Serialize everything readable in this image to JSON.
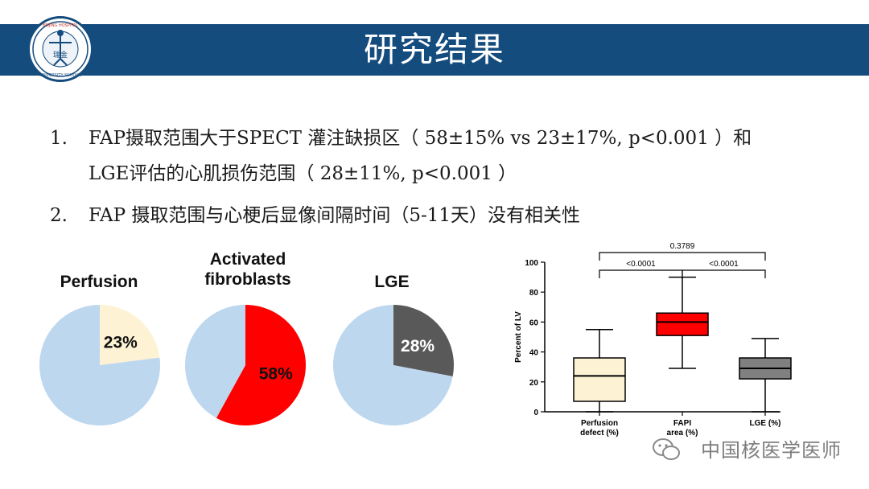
{
  "header": {
    "title": "研究结果",
    "bar_color": "#154c7e",
    "logo_text_top": "BEIJING HOSPITAL",
    "logo_text_bottom": "UNIVERSITY SCHOOL",
    "logo_center": "瑞金"
  },
  "findings": [
    {
      "number": "1.",
      "line1": "FAP摄取范围大于SPECT 灌注缺损区（ 58±15% vs 23±17%, p<0.001 ）和",
      "line2": "LGE评估的心肌损伤范围（ 28±11%, p<0.001 ）"
    },
    {
      "number": "2.",
      "line1": "FAP 摄取范围与心梗后显像间隔时间（5-11天）没有相关性"
    }
  ],
  "watermark": "中国核医学医师",
  "chart_data": [
    {
      "type": "pie",
      "title": "Perfusion",
      "slices": [
        {
          "label": "23%",
          "value": 23,
          "color": "#fdf3d4"
        },
        {
          "label": "",
          "value": 77,
          "color": "#bdd7ee"
        }
      ]
    },
    {
      "type": "pie",
      "title": "Activated fibroblasts",
      "title_lines": [
        "Activated",
        "fibroblasts"
      ],
      "slices": [
        {
          "label": "58%",
          "value": 58,
          "color": "#ff0000"
        },
        {
          "label": "",
          "value": 42,
          "color": "#bdd7ee"
        }
      ]
    },
    {
      "type": "pie",
      "title": "LGE",
      "slices": [
        {
          "label": "28%",
          "value": 28,
          "color": "#595959"
        },
        {
          "label": "",
          "value": 72,
          "color": "#bdd7ee"
        }
      ]
    },
    {
      "type": "box",
      "ylabel": "Percent of LV",
      "ylim": [
        0,
        100
      ],
      "yticks": [
        0,
        20,
        40,
        60,
        80,
        100
      ],
      "categories": [
        "Perfusion defect (%)",
        "FAPI area (%)",
        "LGE (%)"
      ],
      "category_lines": [
        [
          "Perfusion",
          "defect (%)"
        ],
        [
          "FAPI",
          "area (%)"
        ],
        [
          "LGE (%)"
        ]
      ],
      "boxes": [
        {
          "min": 0,
          "q1": 7,
          "median": 24,
          "q3": 36,
          "max": 55,
          "color": "#fdf3d4"
        },
        {
          "min": 29,
          "q1": 51,
          "median": 60,
          "q3": 66,
          "max": 90,
          "color": "#ff0000"
        },
        {
          "min": 0,
          "q1": 22,
          "median": 29,
          "q3": 36,
          "max": 49,
          "color": "#808080"
        }
      ],
      "comparisons": [
        {
          "from": 0,
          "to": 1,
          "label": "<0.0001"
        },
        {
          "from": 1,
          "to": 2,
          "label": "<0.0001"
        },
        {
          "from": 0,
          "to": 2,
          "label": "0.3789"
        }
      ]
    }
  ]
}
